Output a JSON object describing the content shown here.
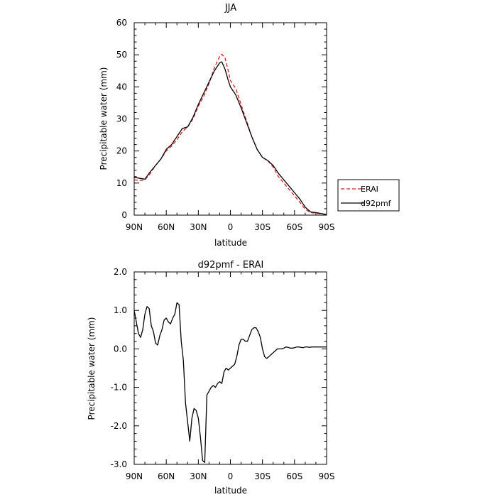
{
  "chart_data": [
    {
      "type": "line",
      "title": "JJA",
      "xlabel": "latitude",
      "ylabel": "Precipitable water  (mm)",
      "xlim": [
        90,
        -90
      ],
      "ylim": [
        0,
        60
      ],
      "x_ticks": [
        90,
        60,
        30,
        0,
        -30,
        -60,
        -90
      ],
      "x_tick_labels": [
        "90N",
        "60N",
        "30N",
        "0",
        "30S",
        "60S",
        "90S"
      ],
      "y_ticks": [
        0,
        10,
        20,
        30,
        40,
        50,
        60
      ],
      "y_tick_labels": [
        "0",
        "10",
        "20",
        "30",
        "40",
        "50",
        "60"
      ],
      "legend_position": "right",
      "series": [
        {
          "name": "ERAI",
          "color": "#e41a1c",
          "dash": "dashed",
          "x": [
            90,
            85,
            80,
            75,
            70,
            65,
            60,
            55,
            50,
            45,
            40,
            35,
            30,
            25,
            20,
            15,
            10,
            8,
            5,
            2,
            0,
            -5,
            -10,
            -15,
            -20,
            -25,
            -30,
            -35,
            -40,
            -45,
            -50,
            -55,
            -60,
            -65,
            -70,
            -75,
            -80,
            -85,
            -90
          ],
          "values": [
            11.0,
            10.8,
            11.0,
            13.0,
            15.5,
            17.5,
            20.0,
            21.5,
            23.5,
            26.0,
            27.5,
            30.0,
            34.0,
            37.0,
            41.0,
            46.0,
            49.5,
            50.2,
            49.0,
            45.0,
            42.0,
            39.5,
            34.5,
            29.5,
            24.5,
            20.5,
            18.0,
            17.0,
            15.0,
            12.0,
            10.0,
            8.0,
            6.0,
            4.0,
            1.8,
            0.8,
            0.6,
            0.4,
            0.2
          ]
        },
        {
          "name": "d92pmf",
          "color": "#000000",
          "dash": "solid",
          "x": [
            90,
            85,
            80,
            75,
            70,
            65,
            60,
            55,
            50,
            45,
            40,
            35,
            30,
            25,
            20,
            15,
            10,
            8,
            5,
            2,
            0,
            -5,
            -10,
            -15,
            -20,
            -25,
            -30,
            -35,
            -40,
            -45,
            -50,
            -55,
            -60,
            -65,
            -70,
            -75,
            -80,
            -85,
            -90
          ],
          "values": [
            11.8,
            11.5,
            11.2,
            13.5,
            15.5,
            17.5,
            20.5,
            22.0,
            24.5,
            27.0,
            27.5,
            30.5,
            34.5,
            38.0,
            41.5,
            45.0,
            47.5,
            47.8,
            45.5,
            42.0,
            40.0,
            37.5,
            33.5,
            29.0,
            24.5,
            20.5,
            18.0,
            17.0,
            15.5,
            13.0,
            11.0,
            9.0,
            7.0,
            5.0,
            2.5,
            1.0,
            0.8,
            0.5,
            0.2
          ]
        }
      ]
    },
    {
      "type": "line",
      "title": "d92pmf - ERAI",
      "xlabel": "latitude",
      "ylabel": "Precipitable water  (mm)",
      "xlim": [
        90,
        -90
      ],
      "ylim": [
        -3.0,
        2.0
      ],
      "x_ticks": [
        90,
        60,
        30,
        0,
        -30,
        -60,
        -90
      ],
      "x_tick_labels": [
        "90N",
        "60N",
        "30N",
        "0",
        "30S",
        "60S",
        "90S"
      ],
      "y_ticks": [
        -3.0,
        -2.0,
        -1.0,
        0.0,
        1.0,
        2.0
      ],
      "y_tick_labels": [
        "-3.0",
        "-2.0",
        "-1.0",
        "0.0",
        "1.0",
        "2.0"
      ],
      "series": [
        {
          "color": "#000000",
          "dash": "solid",
          "x": [
            90,
            88,
            86,
            84,
            82,
            80,
            78,
            76,
            74,
            72,
            70,
            68,
            66,
            64,
            62,
            60,
            58,
            56,
            54,
            52,
            50,
            48,
            46,
            44,
            42,
            40,
            38,
            36,
            34,
            32,
            30,
            28,
            26,
            24,
            22,
            20,
            18,
            16,
            14,
            12,
            10,
            8,
            6,
            4,
            2,
            0,
            -2,
            -4,
            -6,
            -8,
            -10,
            -12,
            -14,
            -16,
            -18,
            -20,
            -22,
            -24,
            -26,
            -28,
            -30,
            -32,
            -34,
            -36,
            -38,
            -40,
            -42,
            -44,
            -46,
            -48,
            -50,
            -52,
            -54,
            -56,
            -58,
            -60,
            -62,
            -64,
            -66,
            -68,
            -70,
            -72,
            -74,
            -76,
            -78,
            -80,
            -82,
            -84,
            -86,
            -88,
            -90
          ],
          "values": [
            1.0,
            0.7,
            0.4,
            0.3,
            0.5,
            0.9,
            1.1,
            1.05,
            0.6,
            0.45,
            0.15,
            0.1,
            0.35,
            0.5,
            0.75,
            0.8,
            0.7,
            0.65,
            0.8,
            0.9,
            1.2,
            1.15,
            0.2,
            -0.3,
            -1.4,
            -1.9,
            -2.4,
            -1.8,
            -1.55,
            -1.6,
            -1.8,
            -2.3,
            -2.9,
            -2.95,
            -1.2,
            -1.1,
            -1.0,
            -0.95,
            -1.0,
            -0.9,
            -0.85,
            -0.9,
            -0.6,
            -0.5,
            -0.55,
            -0.5,
            -0.45,
            -0.4,
            -0.2,
            0.1,
            0.25,
            0.25,
            0.2,
            0.2,
            0.35,
            0.5,
            0.55,
            0.55,
            0.45,
            0.3,
            0.0,
            -0.2,
            -0.25,
            -0.2,
            -0.15,
            -0.1,
            -0.05,
            0.0,
            0.0,
            0.0,
            0.02,
            0.05,
            0.04,
            0.02,
            0.02,
            0.03,
            0.05,
            0.05,
            0.04,
            0.03,
            0.05,
            0.05,
            0.04,
            0.05,
            0.05,
            0.05,
            0.05,
            0.05,
            0.05,
            0.05,
            0.05
          ]
        }
      ]
    }
  ]
}
